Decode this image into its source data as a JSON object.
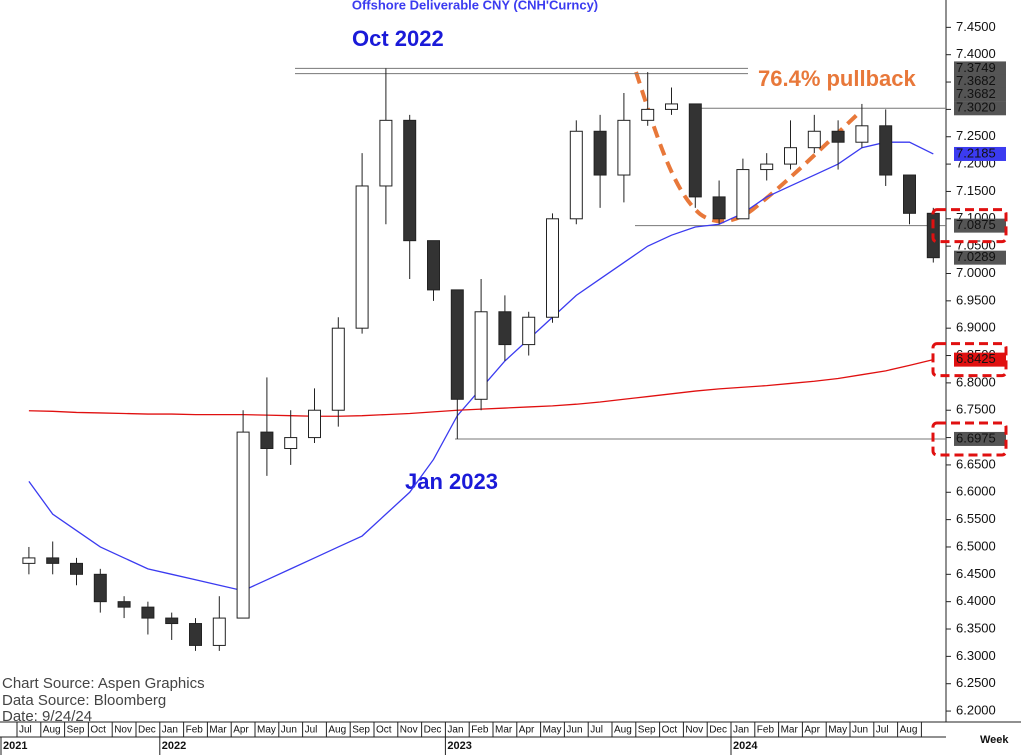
{
  "chart_data": {
    "type": "candlestick",
    "title": "Offshore  Deliverable  CNY  (CNH'Curncy)",
    "categories": [
      "Jul",
      "Aug",
      "Sep",
      "Oct",
      "Nov",
      "Dec",
      "Jan",
      "Feb",
      "Mar",
      "Apr",
      "May",
      "Jun",
      "Jul",
      "Aug",
      "Sep",
      "Oct",
      "Nov",
      "Dec",
      "Jan",
      "Feb",
      "Mar",
      "Apr",
      "May",
      "Jun",
      "Jul",
      "Aug",
      "Sep",
      "Oct",
      "Nov",
      "Dec",
      "Jan",
      "Feb",
      "Mar",
      "Apr",
      "May",
      "Jun",
      "Jul",
      "Aug",
      null
    ],
    "years": [
      "2021",
      "2022",
      "2023",
      "2024"
    ],
    "open": [
      6.47,
      6.48,
      6.47,
      6.45,
      6.4,
      6.39,
      6.37,
      6.36,
      6.32,
      6.37,
      6.71,
      6.68,
      6.7,
      6.75,
      6.9,
      7.16,
      7.28,
      7.06,
      6.97,
      6.77,
      6.93,
      6.87,
      6.92,
      7.1,
      7.26,
      7.18,
      7.28,
      7.3,
      7.31,
      7.14,
      7.1,
      7.19,
      7.2,
      7.23,
      7.26,
      7.24,
      7.27,
      7.18,
      7.11
    ],
    "high": [
      6.5,
      6.51,
      6.48,
      6.46,
      6.41,
      6.4,
      6.38,
      6.37,
      6.41,
      6.75,
      6.81,
      6.75,
      6.79,
      6.92,
      7.22,
      7.3749,
      7.29,
      7.06,
      6.97,
      6.99,
      6.96,
      6.93,
      7.11,
      7.28,
      7.29,
      7.33,
      7.3682,
      7.34,
      7.31,
      7.17,
      7.21,
      7.22,
      7.28,
      7.29,
      7.28,
      7.31,
      7.3,
      7.18,
      7.12
    ],
    "low": [
      6.45,
      6.45,
      6.43,
      6.38,
      6.37,
      6.34,
      6.33,
      6.31,
      6.31,
      6.37,
      6.63,
      6.65,
      6.69,
      6.72,
      6.89,
      7.09,
      6.99,
      6.95,
      6.6975,
      6.75,
      6.84,
      6.85,
      6.91,
      7.09,
      7.12,
      7.13,
      7.27,
      7.29,
      7.12,
      7.09,
      7.1,
      7.17,
      7.19,
      7.22,
      7.19,
      7.23,
      7.16,
      7.09,
      7.02
    ],
    "close": [
      6.48,
      6.47,
      6.45,
      6.4,
      6.39,
      6.37,
      6.36,
      6.32,
      6.37,
      6.71,
      6.68,
      6.7,
      6.75,
      6.9,
      7.16,
      7.28,
      7.06,
      6.97,
      6.77,
      6.93,
      6.87,
      6.92,
      7.1,
      7.26,
      7.18,
      7.28,
      7.3,
      7.31,
      7.14,
      7.1,
      7.19,
      7.2,
      7.23,
      7.26,
      7.24,
      7.27,
      7.18,
      7.11,
      7.0289
    ],
    "series": [
      {
        "color": "#3b3bf0",
        "values": [
          6.62,
          6.56,
          6.53,
          6.5,
          6.48,
          6.46,
          6.45,
          6.44,
          6.43,
          6.42,
          6.44,
          6.46,
          6.48,
          6.5,
          6.52,
          6.56,
          6.6,
          6.66,
          6.74,
          6.79,
          6.84,
          6.88,
          6.92,
          6.96,
          6.99,
          7.02,
          7.05,
          7.07,
          7.085,
          7.09,
          7.11,
          7.14,
          7.16,
          7.18,
          7.2,
          7.23,
          7.24,
          7.24,
          7.2185
        ]
      },
      {
        "color": "#e01010",
        "values": [
          6.749,
          6.748,
          6.746,
          6.745,
          6.744,
          6.743,
          6.743,
          6.742,
          6.742,
          6.742,
          6.741,
          6.74,
          6.739,
          6.739,
          6.74,
          6.742,
          6.744,
          6.747,
          6.75,
          6.752,
          6.754,
          6.756,
          6.758,
          6.761,
          6.765,
          6.77,
          6.775,
          6.78,
          6.785,
          6.789,
          6.792,
          6.795,
          6.799,
          6.803,
          6.808,
          6.815,
          6.822,
          6.832,
          6.8425
        ]
      }
    ],
    "ylim": [
      6.18,
      7.5
    ],
    "yticks": [
      {
        "value": 6.2,
        "label": "6.2000"
      },
      {
        "value": 6.25,
        "label": "6.2500"
      },
      {
        "value": 6.3,
        "label": "6.3000"
      },
      {
        "value": 6.35,
        "label": "6.3500"
      },
      {
        "value": 6.4,
        "label": "6.4000"
      },
      {
        "value": 6.45,
        "label": "6.4500"
      },
      {
        "value": 6.5,
        "label": "6.5000"
      },
      {
        "value": 6.55,
        "label": "6.5500"
      },
      {
        "value": 6.6,
        "label": "6.6000"
      },
      {
        "value": 6.65,
        "label": "6.6500"
      },
      {
        "value": 6.7,
        "label": "6.7000"
      },
      {
        "value": 6.75,
        "label": "6.7500"
      },
      {
        "value": 6.8,
        "label": "6.8000"
      },
      {
        "value": 6.85,
        "label": "6.8500"
      },
      {
        "value": 6.9,
        "label": "6.9000"
      },
      {
        "value": 6.95,
        "label": "6.9500"
      },
      {
        "value": 7.0,
        "label": "7.0000"
      },
      {
        "value": 7.05,
        "label": "7.0500"
      },
      {
        "value": 7.1,
        "label": "7.1000"
      },
      {
        "value": 7.15,
        "label": "7.1500"
      },
      {
        "value": 7.2,
        "label": "7.2000"
      },
      {
        "value": 7.25,
        "label": "7.2500"
      },
      {
        "value": 7.3,
        "label": "7.3000"
      },
      {
        "value": 7.35,
        "label": "7.3500"
      },
      {
        "value": 7.4,
        "label": "7.4000"
      },
      {
        "value": 7.45,
        "label": "7.4500"
      }
    ],
    "price_labels": [
      {
        "value": 7.3749,
        "label": "7.3749",
        "color": "#555555",
        "level": true
      },
      {
        "value": 7.3682,
        "label": "7.3682",
        "color": "#555555",
        "level": true
      },
      {
        "value": 7.3682,
        "label": "7.3682",
        "color": "#555555"
      },
      {
        "value": 7.302,
        "label": "7.3020",
        "color": "#555555",
        "level": true
      },
      {
        "value": 7.2185,
        "label": "7.2185",
        "color": "#3b3bf0"
      },
      {
        "value": 7.0875,
        "label": "7.0875",
        "color": "#555555",
        "level": true,
        "highlight": true
      },
      {
        "value": 7.0289,
        "label": "7.0289",
        "color": "#555555"
      },
      {
        "value": 6.8425,
        "label": "6.8425",
        "color": "#e01010",
        "highlight": true
      },
      {
        "value": 6.6975,
        "label": "6.6975",
        "color": "#555555",
        "level": true,
        "highlight": true
      }
    ],
    "annotations": [
      "Oct 2022",
      "Jan 2023",
      "76.4% pullback"
    ],
    "notes": [
      "Chart Source:  Aspen Graphics",
      "Data Source:  Bloomberg",
      "Date:     9/24/24"
    ],
    "period": "Week"
  }
}
